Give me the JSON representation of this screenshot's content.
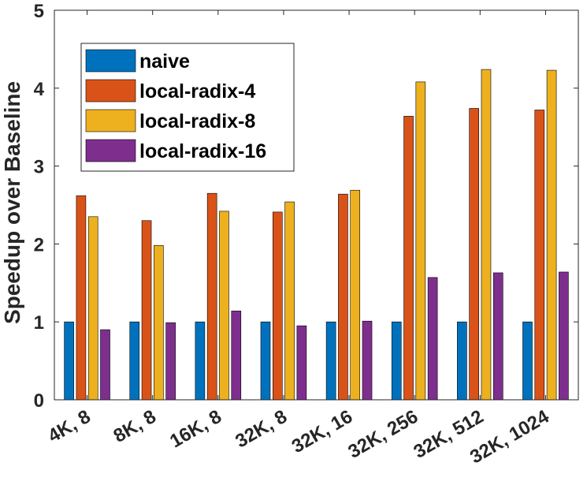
{
  "chart_data": {
    "type": "bar",
    "title": "",
    "xlabel": "",
    "ylabel": "Speedup over Baseline",
    "ylim": [
      0,
      5
    ],
    "yticks": [
      0,
      1,
      2,
      3,
      4,
      5
    ],
    "grid": false,
    "legend_position": "top-left",
    "categories": [
      "4K, 8",
      "8K, 8",
      "16K, 8",
      "32K, 8",
      "32K, 16",
      "32K, 256",
      "32K, 512",
      "32K, 1024"
    ],
    "series": [
      {
        "name": "naive",
        "color": "#0072BD",
        "values": [
          1,
          1,
          1,
          1,
          1,
          1,
          1,
          1
        ]
      },
      {
        "name": "local-radix-4",
        "color": "#D95319",
        "values": [
          2.62,
          2.3,
          2.65,
          2.41,
          2.64,
          3.64,
          3.74,
          3.72
        ]
      },
      {
        "name": "local-radix-8",
        "color": "#EDB120",
        "values": [
          2.35,
          1.98,
          2.42,
          2.54,
          2.69,
          4.08,
          4.24,
          4.23
        ]
      },
      {
        "name": "local-radix-16",
        "color": "#7E2F8E",
        "values": [
          0.9,
          0.99,
          1.14,
          0.95,
          1.01,
          1.57,
          1.63,
          1.64
        ]
      }
    ]
  }
}
